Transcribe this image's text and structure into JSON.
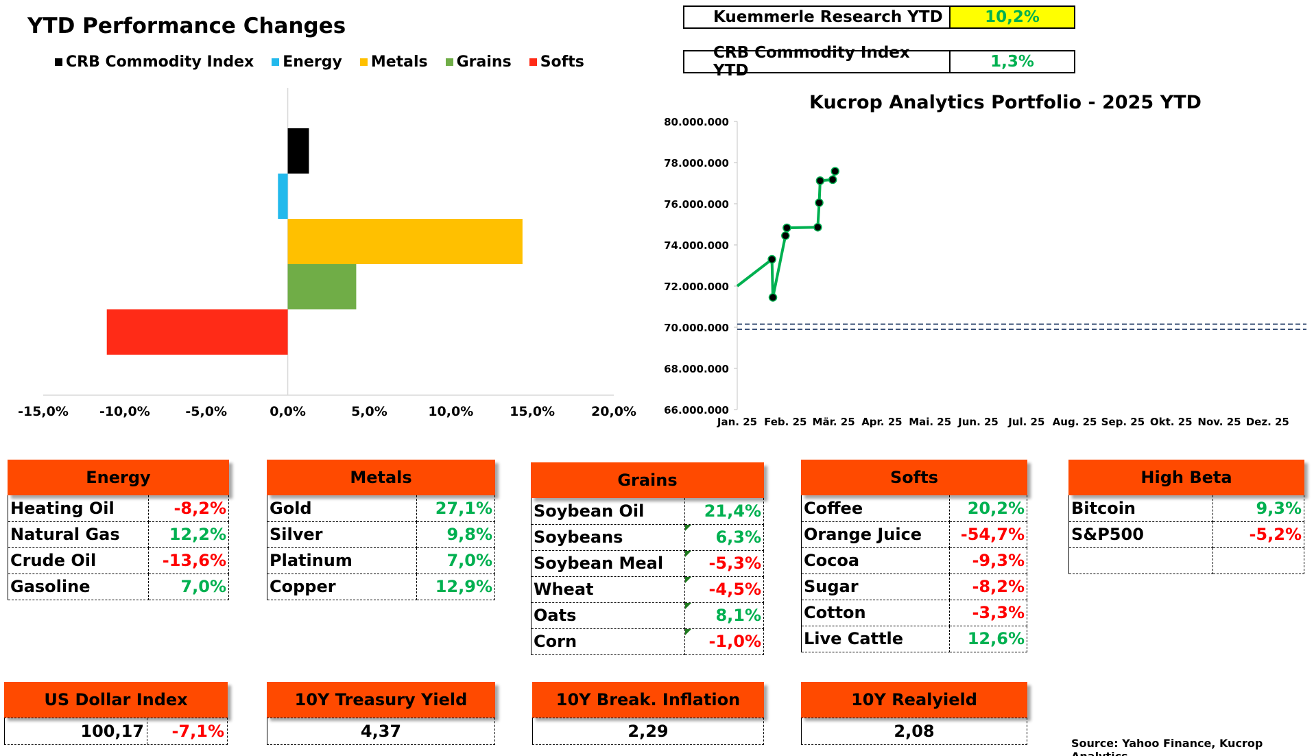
{
  "ytd_chart": {
    "title": "YTD Performance Changes",
    "legend": [
      {
        "label": "CRB Commodity Index",
        "color": "#000000"
      },
      {
        "label": "Energy",
        "color": "#22b9ec"
      },
      {
        "label": "Metals",
        "color": "#ffc000"
      },
      {
        "label": "Grains",
        "color": "#70ad47"
      },
      {
        "label": "Softs",
        "color": "#ff2b17"
      }
    ]
  },
  "kpis": [
    {
      "label": "Kuemmerle Research YTD",
      "value": "10,2%",
      "highlight": "#ffff00"
    },
    {
      "label": "CRB Commodity Index YTD",
      "value": "1,3%",
      "highlight": "#ffffff"
    }
  ],
  "portfolio_chart": {
    "title": "Kucrop Analytics Portfolio - 2025 YTD",
    "line_color": "#00b050",
    "reference_line_color": "#1f3864"
  },
  "chart_data": [
    {
      "type": "bar",
      "orientation": "horizontal",
      "categories": [
        "CRB Commodity Index",
        "Energy",
        "Metals",
        "Grains",
        "Softs"
      ],
      "values": [
        1.3,
        -0.6,
        14.4,
        4.2,
        -11.1
      ],
      "colors": [
        "#000000",
        "#22b9ec",
        "#ffc000",
        "#70ad47",
        "#ff2b17"
      ],
      "xlim": [
        -15,
        20
      ],
      "xticks": [
        -15,
        -10,
        -5,
        0,
        5,
        10,
        15,
        20
      ],
      "xtick_labels": [
        "-15,0%",
        "-10,0%",
        "-5,0%",
        "0,0%",
        "5,0%",
        "10,0%",
        "15,0%",
        "20,0%"
      ],
      "legend": "top",
      "grid": false
    },
    {
      "type": "line",
      "x_labels": [
        "Jan. 25",
        "Feb. 25",
        "Mär. 25",
        "Apr. 25",
        "Mai. 25",
        "Jun. 25",
        "Jul. 25",
        "Aug. 25",
        "Sep. 25",
        "Okt. 25",
        "Nov. 25",
        "Dez. 25"
      ],
      "x": [
        0,
        0.72,
        0.74,
        1.0,
        1.03,
        1.67,
        1.7,
        1.72,
        1.98,
        2.03
      ],
      "values": [
        72000000,
        73300000,
        71450000,
        74450000,
        74830000,
        74860000,
        76050000,
        77120000,
        77170000,
        77580000
      ],
      "markers": [
        false,
        true,
        true,
        true,
        true,
        true,
        true,
        true,
        true,
        true
      ],
      "ylim": [
        66000000,
        80000000
      ],
      "yticks": [
        66000000,
        68000000,
        70000000,
        72000000,
        74000000,
        76000000,
        78000000,
        80000000
      ],
      "ytick_labels": [
        "66.000.000",
        "68.000.000",
        "70.000.000",
        "72.000.000",
        "74.000.000",
        "76.000.000",
        "78.000.000",
        "80.000.000"
      ],
      "reference_lines": [
        70150000,
        69900000
      ],
      "grid": false
    }
  ],
  "panels": [
    {
      "title": "Energy",
      "rows": [
        {
          "name": "Heating Oil",
          "value": "-8,2%",
          "sign": "neg"
        },
        {
          "name": "Natural Gas",
          "value": "12,2%",
          "sign": "pos"
        },
        {
          "name": "Crude Oil",
          "value": "-13,6%",
          "sign": "neg"
        },
        {
          "name": "Gasoline",
          "value": "7,0%",
          "sign": "pos"
        }
      ]
    },
    {
      "title": "Metals",
      "rows": [
        {
          "name": "Gold",
          "value": "27,1%",
          "sign": "pos"
        },
        {
          "name": "Silver",
          "value": "9,8%",
          "sign": "pos"
        },
        {
          "name": "Platinum",
          "value": "7,0%",
          "sign": "pos"
        },
        {
          "name": "Copper",
          "value": "12,9%",
          "sign": "pos"
        }
      ]
    },
    {
      "title": "Grains",
      "rows": [
        {
          "name": "Soybean Oil",
          "value": "21,4%",
          "sign": "pos"
        },
        {
          "name": "Soybeans",
          "value": "6,3%",
          "sign": "pos"
        },
        {
          "name": "Soybean Meal",
          "value": "-5,3%",
          "sign": "neg"
        },
        {
          "name": "Wheat",
          "value": "-4,5%",
          "sign": "neg"
        },
        {
          "name": "Oats",
          "value": "8,1%",
          "sign": "pos"
        },
        {
          "name": "Corn",
          "value": "-1,0%",
          "sign": "neg"
        }
      ]
    },
    {
      "title": "Softs",
      "rows": [
        {
          "name": "Coffee",
          "value": "20,2%",
          "sign": "pos"
        },
        {
          "name": "Orange Juice",
          "value": "-54,7%",
          "sign": "neg"
        },
        {
          "name": "Cocoa",
          "value": "-9,3%",
          "sign": "neg"
        },
        {
          "name": "Sugar",
          "value": "-8,2%",
          "sign": "neg"
        },
        {
          "name": "Cotton",
          "value": "-3,3%",
          "sign": "neg"
        },
        {
          "name": "Live Cattle",
          "value": "12,6%",
          "sign": "pos"
        }
      ]
    },
    {
      "title": "High Beta",
      "rows": [
        {
          "name": "Bitcoin",
          "value": "9,3%",
          "sign": "pos"
        },
        {
          "name": "S&P500",
          "value": "-5,2%",
          "sign": "neg"
        },
        {
          "name": "",
          "value": "",
          "sign": ""
        }
      ]
    }
  ],
  "macro": [
    {
      "title": "US Dollar Index",
      "value": "100,17",
      "change": "-7,1%"
    },
    {
      "title": "10Y Treasury Yield",
      "value": "4,37"
    },
    {
      "title": "10Y Break. Inflation",
      "value": "2,29"
    },
    {
      "title": "10Y Realyield",
      "value": "2,08"
    }
  ],
  "source": "Source: Yahoo Finance, Kucrop Analytics"
}
